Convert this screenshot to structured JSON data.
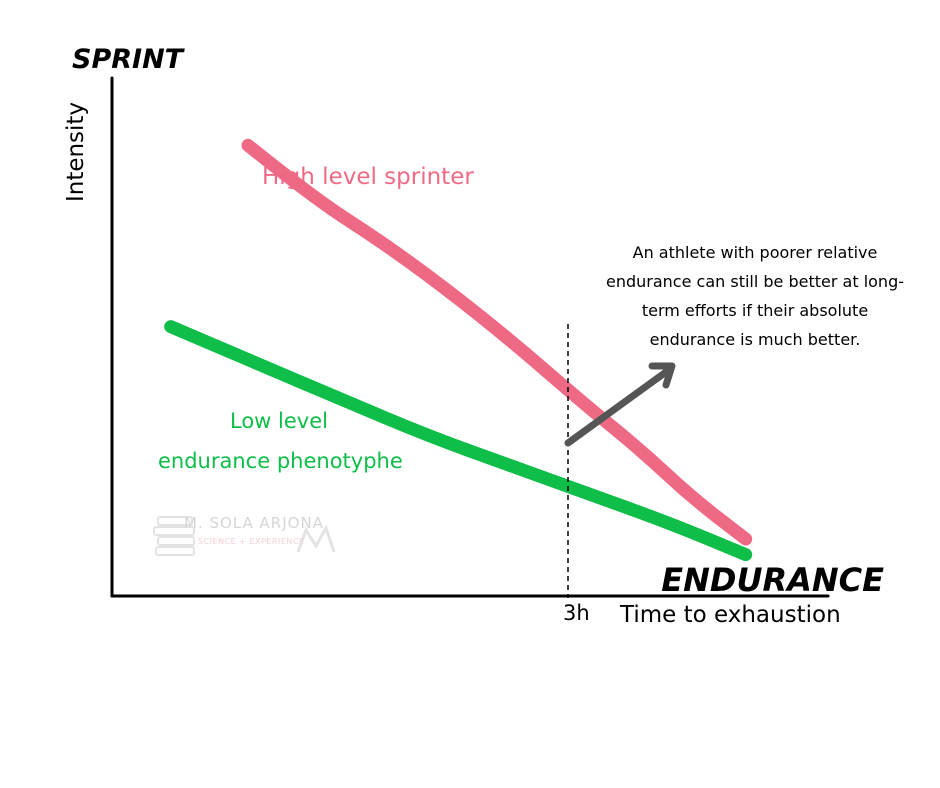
{
  "chart_data": {
    "type": "line",
    "title": "",
    "x_axis": {
      "end_label": "ENDURANCE",
      "label": "Time to exhaustion",
      "marker_label": "3h"
    },
    "y_axis": {
      "top_label": "SPRINT",
      "label": "Intensity"
    },
    "xlim": [
      0,
      1
    ],
    "ylim": [
      0,
      1
    ],
    "grid": false,
    "series": [
      {
        "name": "High level sprinter",
        "color": "#ee6a84",
        "x": [
          0.19,
          0.28,
          0.37,
          0.46,
          0.56,
          0.66,
          0.74,
          0.81,
          0.885
        ],
        "y": [
          0.87,
          0.77,
          0.69,
          0.6,
          0.49,
          0.37,
          0.28,
          0.19,
          0.11
        ]
      },
      {
        "name": "Low level endurance phenotyphe",
        "color": "#0ebe48",
        "x": [
          0.082,
          0.2,
          0.32,
          0.44,
          0.56,
          0.68,
          0.78,
          0.885
        ],
        "y": [
          0.52,
          0.45,
          0.38,
          0.31,
          0.25,
          0.19,
          0.14,
          0.08
        ]
      }
    ],
    "series_labels": [
      {
        "series": 0,
        "lines": [
          "High level sprinter"
        ]
      },
      {
        "series": 1,
        "lines": [
          "Low level",
          "endurance phenotyphe"
        ]
      }
    ],
    "annotation": {
      "lines": [
        "An athlete with poorer relative",
        "endurance can still be better at long-",
        "term efforts if their absolute",
        "endurance is much better."
      ],
      "arrow_color": "#555555"
    },
    "watermark": {
      "name": "M. SOLA ARJONA",
      "tagline": "SCIENCE + EXPERIENCE"
    }
  }
}
